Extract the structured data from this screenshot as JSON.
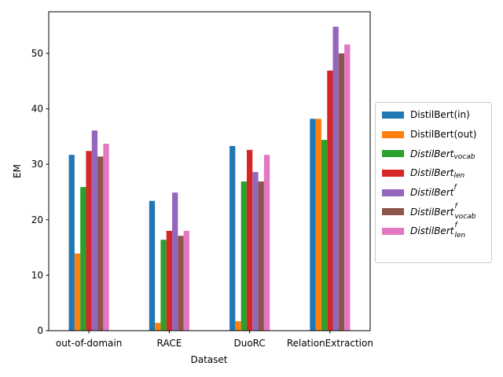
{
  "chart_data": {
    "type": "bar",
    "title": "",
    "xlabel": "Dataset",
    "ylabel": "EM",
    "categories": [
      "out-of-domain",
      "RACE",
      "DuoRC",
      "RelationExtraction"
    ],
    "ylim": [
      0,
      57.5
    ],
    "yticks": [
      0,
      10,
      20,
      30,
      40,
      50
    ],
    "grid": false,
    "legend_position": "right-outside",
    "series": [
      {
        "name": "DistilBert(in)",
        "base": "DistilBert(in)",
        "sub": "",
        "sup": "",
        "italic": false,
        "color": "#1f77b4",
        "values": [
          31.7,
          23.4,
          33.3,
          38.2
        ]
      },
      {
        "name": "DistilBert(out)",
        "base": "DistilBert(out)",
        "sub": "",
        "sup": "",
        "italic": false,
        "color": "#ff7f0e",
        "values": [
          13.9,
          1.4,
          1.7,
          38.2
        ]
      },
      {
        "name": "DistilBert_vocab",
        "base": "DistilBert",
        "sub": "vocab",
        "sup": "",
        "italic": true,
        "color": "#2ca02c",
        "values": [
          25.9,
          16.4,
          26.9,
          34.4
        ]
      },
      {
        "name": "DistilBert_len",
        "base": "DistilBert",
        "sub": "len",
        "sup": "",
        "italic": true,
        "color": "#d62728",
        "values": [
          32.4,
          18.0,
          32.6,
          46.9
        ]
      },
      {
        "name": "DistilBert^f",
        "base": "DistilBert",
        "sub": "",
        "sup": "f",
        "italic": true,
        "color": "#9467bd",
        "values": [
          36.1,
          24.9,
          28.6,
          54.8
        ]
      },
      {
        "name": "DistilBert^f_vocab",
        "base": "DistilBert",
        "sub": "vocab",
        "sup": "f",
        "italic": true,
        "color": "#8c564b",
        "values": [
          31.4,
          17.1,
          26.9,
          50.0
        ]
      },
      {
        "name": "DistilBert^f_len",
        "base": "DistilBert",
        "sub": "len",
        "sup": "f",
        "italic": true,
        "color": "#e377c2",
        "values": [
          33.7,
          18.0,
          31.7,
          51.6
        ]
      }
    ]
  }
}
